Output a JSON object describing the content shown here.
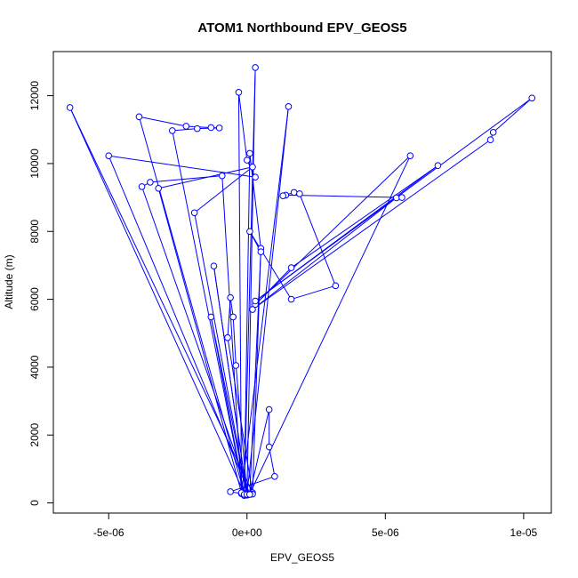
{
  "chart_data": {
    "type": "line",
    "title": "ATOM1 Northbound EPV_GEOS5",
    "xlabel": "EPV_GEOS5",
    "ylabel": "Altitude (m)",
    "xlim": [
      -7e-06,
      1.1e-05
    ],
    "ylim": [
      -300,
      13300
    ],
    "x_ticks": [
      {
        "value": -5e-06,
        "label": "-5e-06"
      },
      {
        "value": 0,
        "label": "0e+00"
      },
      {
        "value": 5e-06,
        "label": "5e-06"
      },
      {
        "value": 1e-05,
        "label": "1e-05"
      }
    ],
    "y_ticks": [
      {
        "value": 0,
        "label": "0"
      },
      {
        "value": 2000,
        "label": "2000"
      },
      {
        "value": 4000,
        "label": "4000"
      },
      {
        "value": 6000,
        "label": "6000"
      },
      {
        "value": 8000,
        "label": "8000"
      },
      {
        "value": 10000,
        "label": "10000"
      },
      {
        "value": 12000,
        "label": "12000"
      }
    ],
    "grid": false,
    "marker": "open-circle",
    "series": [
      {
        "color": "#0000ff",
        "points": [
          [
            -1e-07,
            220
          ],
          [
            2e-07,
            300
          ],
          [
            -6.4e-06,
            11650
          ],
          [
            -1e-07,
            280
          ],
          [
            -3.9e-06,
            11380
          ],
          [
            -2.2e-06,
            11100
          ],
          [
            -1.3e-06,
            11060
          ],
          [
            -1e-06,
            11050
          ],
          [
            -1.8e-06,
            11030
          ],
          [
            -2.7e-06,
            10970
          ],
          [
            -1e-07,
            250
          ],
          [
            3e-07,
            12830
          ],
          [
            0,
            260
          ],
          [
            1.5e-06,
            11680
          ],
          [
            -2e-07,
            270
          ],
          [
            -3e-07,
            12100
          ],
          [
            0,
            10100
          ],
          [
            3e-07,
            9600
          ],
          [
            -5e-06,
            10230
          ],
          [
            1e-07,
            250
          ],
          [
            -3.8e-06,
            9320
          ],
          [
            -3.5e-06,
            9450
          ],
          [
            -9e-07,
            9640
          ],
          [
            -2e-07,
            300
          ],
          [
            -3.2e-06,
            9270
          ],
          [
            2e-07,
            9900
          ],
          [
            -1.9e-06,
            8550
          ],
          [
            0,
            240
          ],
          [
            -1.2e-06,
            6980
          ],
          [
            0,
            230
          ],
          [
            -1.3e-06,
            5480
          ],
          [
            -1e-07,
            250
          ],
          [
            1e-07,
            10300
          ],
          [
            5e-07,
            7500
          ],
          [
            2e-07,
            260
          ],
          [
            -7e-07,
            4870
          ],
          [
            -6e-07,
            6050
          ],
          [
            -5e-07,
            5480
          ],
          [
            -4e-07,
            4050
          ],
          [
            0,
            250
          ],
          [
            -6e-07,
            330
          ],
          [
            1e-06,
            780
          ],
          [
            8e-07,
            1650
          ],
          [
            8e-07,
            2750
          ],
          [
            1e-07,
            270
          ],
          [
            5.9e-06,
            10230
          ],
          [
            3e-07,
            5850
          ],
          [
            1.6e-06,
            6930
          ],
          [
            6.9e-06,
            9940
          ],
          [
            3e-07,
            5950
          ],
          [
            1.03e-05,
            11930
          ],
          [
            8.9e-06,
            10920
          ],
          [
            8.8e-06,
            10700
          ],
          [
            2e-07,
            5700
          ],
          [
            5.4e-06,
            8990
          ],
          [
            5.6e-06,
            9000
          ],
          [
            1.4e-06,
            9070
          ],
          [
            1.3e-06,
            9050
          ],
          [
            1.7e-06,
            9150
          ],
          [
            1.9e-06,
            9110
          ],
          [
            3.2e-06,
            6400
          ],
          [
            1.6e-06,
            6000
          ],
          [
            1e-07,
            8000
          ],
          [
            5e-07,
            7400
          ],
          [
            1e-07,
            250
          ]
        ]
      }
    ]
  }
}
